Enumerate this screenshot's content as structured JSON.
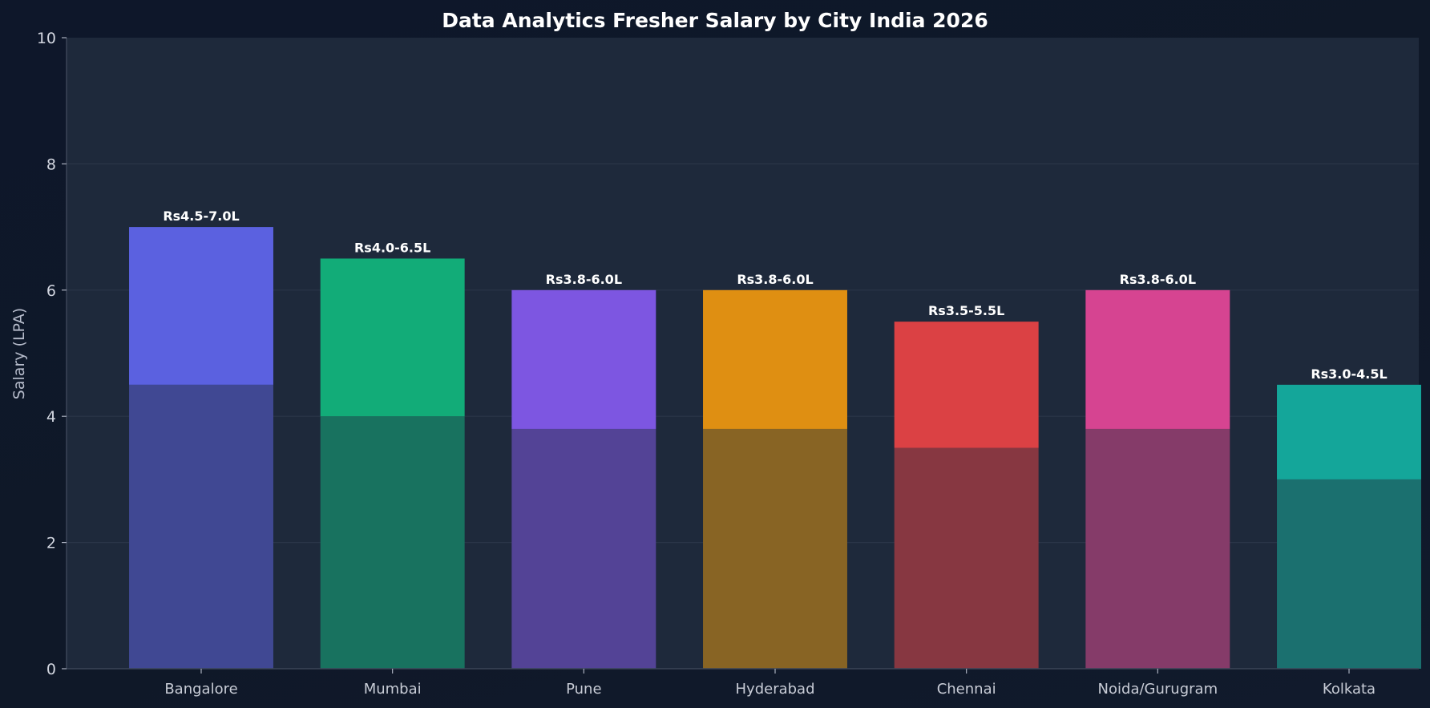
{
  "chart_data": {
    "type": "bar",
    "title": "Data Analytics Fresher Salary by City India 2026",
    "xlabel": "",
    "ylabel": "Salary (LPA)",
    "ylim": [
      0,
      10
    ],
    "yticks": [
      0,
      2,
      4,
      6,
      8,
      10
    ],
    "grid": true,
    "categories": [
      "Bangalore",
      "Mumbai",
      "Pune",
      "Hyderabad",
      "Chennai",
      "Noida/Gurugram",
      "Kolkata"
    ],
    "series": [
      {
        "values": [
          4.5,
          4.0,
          3.8,
          3.8,
          3.5,
          3.8,
          3.0
        ]
      },
      {
        "values": [
          7.0,
          6.5,
          6.0,
          6.0,
          5.5,
          6.0,
          4.5
        ]
      }
    ],
    "labels": [
      "Rs4.5-7.0L",
      "Rs4.0-6.5L",
      "Rs3.8-6.0L",
      "Rs3.8-6.0L",
      "Rs3.5-5.5L",
      "Rs3.8-6.0L",
      "Rs3.0-4.5L"
    ],
    "colors_upper": [
      "#5b61e0",
      "#12ac78",
      "#7d56e1",
      "#df8f12",
      "#db4144",
      "#d64491",
      "#14a69a"
    ],
    "colors_lower": [
      "#404893",
      "#18725f",
      "#534396",
      "#886424",
      "#873741",
      "#853b69",
      "#1b706f"
    ],
    "plot_bg": "#1e293b",
    "figure_bg": "#0f172a",
    "grid_color": "#2a3548"
  }
}
